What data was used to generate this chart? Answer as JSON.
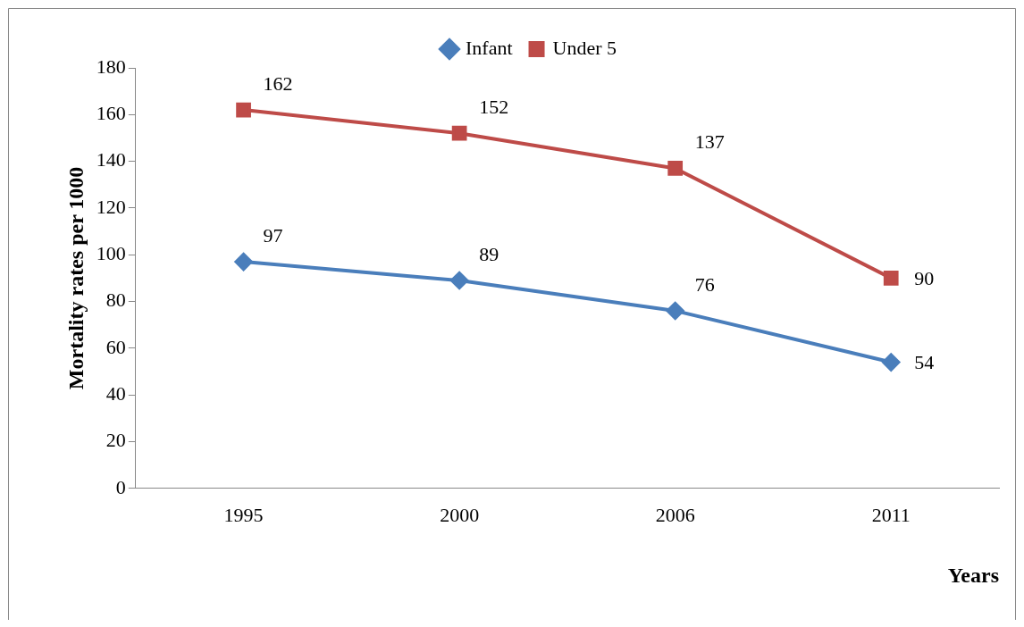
{
  "chart_data": {
    "type": "line",
    "xlabel": "Years",
    "ylabel": "Mortality rates per 1000",
    "categories": [
      "1995",
      "2000",
      "2006",
      "2011"
    ],
    "series": [
      {
        "name": "Infant",
        "color": "#4a7ebb",
        "values": [
          97,
          89,
          76,
          54
        ],
        "marker": "diamond"
      },
      {
        "name": "Under 5",
        "color": "#be4b48",
        "values": [
          162,
          152,
          137,
          90
        ],
        "marker": "square"
      }
    ],
    "ylim": [
      0,
      180
    ],
    "yticks": [
      0,
      20,
      40,
      60,
      80,
      100,
      120,
      140,
      160,
      180
    ],
    "grid": false,
    "legend": "top",
    "data_labels": true,
    "line_style": "solid"
  }
}
